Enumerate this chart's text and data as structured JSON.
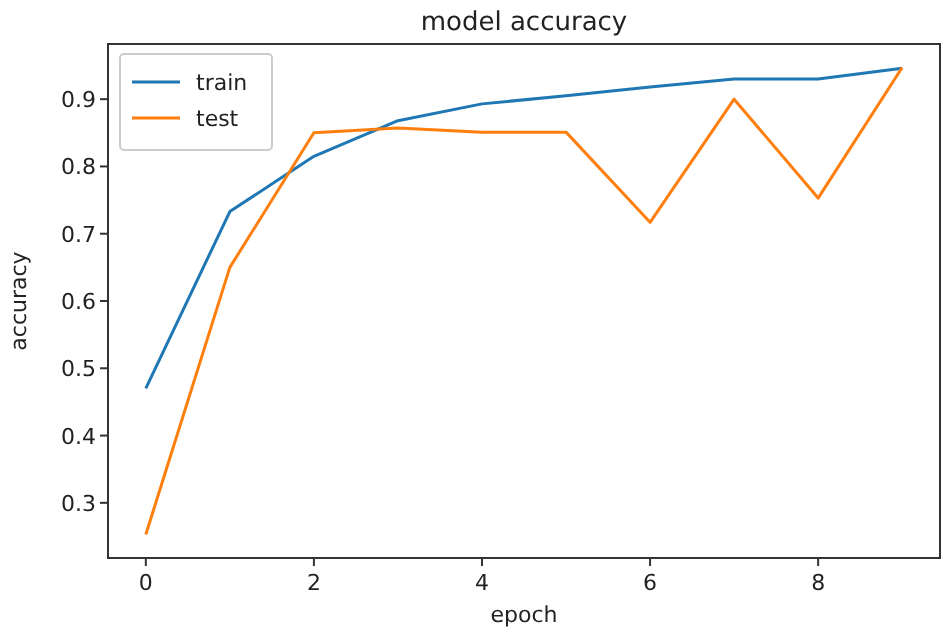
{
  "chart_data": {
    "type": "line",
    "title": "model accuracy",
    "xlabel": "epoch",
    "ylabel": "accuracy",
    "x": [
      0,
      1,
      2,
      3,
      4,
      5,
      6,
      7,
      8,
      9
    ],
    "series": [
      {
        "name": "train",
        "color": "#1f77b4",
        "values": [
          0.47,
          0.733,
          0.815,
          0.868,
          0.893,
          0.905,
          0.918,
          0.93,
          0.93,
          0.946
        ]
      },
      {
        "name": "test",
        "color": "#ff7f0e",
        "values": [
          0.253,
          0.65,
          0.85,
          0.857,
          0.851,
          0.851,
          0.717,
          0.9,
          0.753,
          0.947
        ]
      }
    ],
    "xlim": [
      -0.45,
      9.45
    ],
    "ylim": [
      0.218,
      0.982
    ],
    "xticks": [
      0,
      2,
      4,
      6,
      8
    ],
    "yticks": [
      0.3,
      0.4,
      0.5,
      0.6,
      0.7,
      0.8,
      0.9
    ],
    "legend": "top left",
    "grid": false,
    "marker": "none",
    "line_style": "solid"
  }
}
